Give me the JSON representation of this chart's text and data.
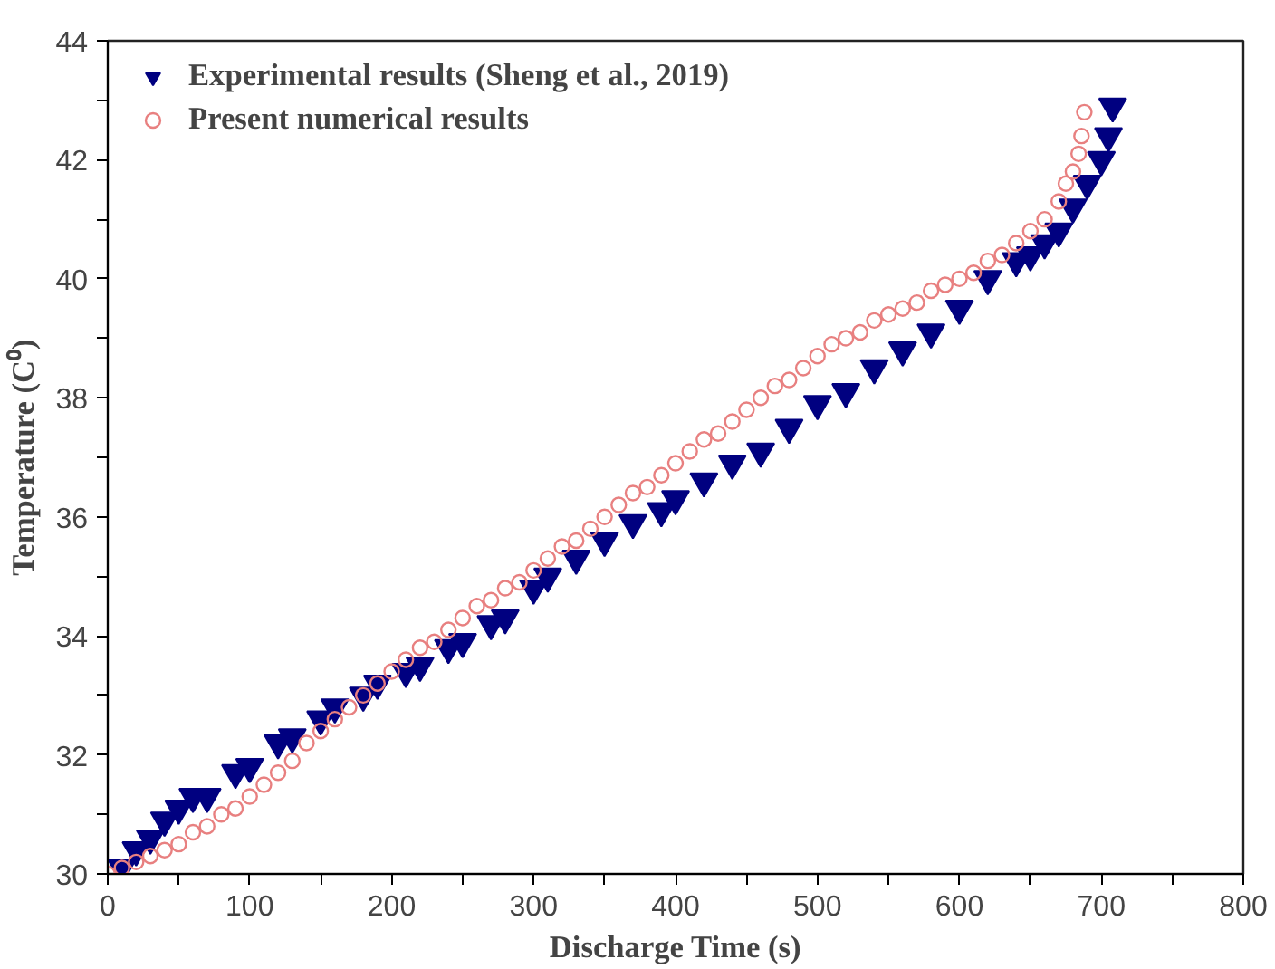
{
  "chart_data": {
    "type": "scatter",
    "xlabel": "Discharge Time (s)",
    "ylabel": "Temperature (C⁰)",
    "xlim": [
      0,
      800
    ],
    "ylim": [
      30,
      44
    ],
    "xticks": [
      0,
      {
        "value": 50,
        "label": null
      },
      100,
      {
        "value": 150,
        "label": null
      },
      200,
      {
        "value": 250,
        "label": null
      },
      300,
      {
        "value": 350,
        "label": null
      },
      400,
      {
        "value": 450,
        "label": null
      },
      500,
      {
        "value": 550,
        "label": null
      },
      600,
      {
        "value": 650,
        "label": null
      },
      700,
      {
        "value": 750,
        "label": null
      },
      800
    ],
    "yticks": [
      30,
      {
        "value": 31,
        "label": null
      },
      32,
      {
        "value": 33,
        "label": null
      },
      34,
      {
        "value": 35,
        "label": null
      },
      36,
      {
        "value": 37,
        "label": null
      },
      38,
      {
        "value": 39,
        "label": null
      },
      40,
      {
        "value": 41,
        "label": null
      },
      42,
      {
        "value": 43,
        "label": null
      },
      44
    ],
    "grid": false,
    "legend": "top left",
    "series": [
      {
        "name": "Experimental results (Sheng et al., 2019)",
        "color": "#000080",
        "marker": "triangle",
        "x": [
          10,
          20,
          30,
          40,
          50,
          60,
          70,
          90,
          100,
          120,
          130,
          150,
          160,
          180,
          190,
          210,
          220,
          240,
          250,
          270,
          280,
          300,
          310,
          330,
          350,
          370,
          390,
          400,
          420,
          440,
          460,
          480,
          500,
          520,
          540,
          560,
          580,
          600,
          620,
          640,
          650,
          660,
          670,
          680,
          690,
          700,
          705,
          708
        ],
        "values": [
          30.1,
          30.4,
          30.6,
          30.9,
          31.1,
          31.3,
          31.3,
          31.7,
          31.8,
          32.2,
          32.3,
          32.6,
          32.8,
          33.0,
          33.2,
          33.4,
          33.5,
          33.8,
          33.9,
          34.2,
          34.3,
          34.8,
          35.0,
          35.3,
          35.6,
          35.9,
          36.1,
          36.3,
          36.6,
          36.9,
          37.1,
          37.5,
          37.9,
          38.1,
          38.5,
          38.8,
          39.1,
          39.5,
          40.0,
          40.3,
          40.4,
          40.6,
          40.8,
          41.2,
          41.6,
          42.0,
          42.4,
          42.9
        ]
      },
      {
        "name": "Present numerical results",
        "color": "#e88080",
        "marker": "circle",
        "x": [
          0,
          10,
          20,
          30,
          40,
          50,
          60,
          70,
          80,
          90,
          100,
          110,
          120,
          130,
          140,
          150,
          160,
          170,
          180,
          190,
          200,
          210,
          220,
          230,
          240,
          250,
          260,
          270,
          280,
          290,
          300,
          310,
          320,
          330,
          340,
          350,
          360,
          370,
          380,
          390,
          400,
          410,
          420,
          430,
          440,
          450,
          460,
          470,
          480,
          490,
          500,
          510,
          520,
          530,
          540,
          550,
          560,
          570,
          580,
          590,
          600,
          610,
          620,
          630,
          640,
          650,
          660,
          670,
          675,
          680,
          684,
          686,
          688
        ],
        "values": [
          30.0,
          30.1,
          30.2,
          30.3,
          30.4,
          30.5,
          30.7,
          30.8,
          31.0,
          31.1,
          31.3,
          31.5,
          31.7,
          31.9,
          32.2,
          32.4,
          32.6,
          32.8,
          33.0,
          33.2,
          33.4,
          33.6,
          33.8,
          33.9,
          34.1,
          34.3,
          34.5,
          34.6,
          34.8,
          34.9,
          35.1,
          35.3,
          35.5,
          35.6,
          35.8,
          36.0,
          36.2,
          36.4,
          36.5,
          36.7,
          36.9,
          37.1,
          37.3,
          37.4,
          37.6,
          37.8,
          38.0,
          38.2,
          38.3,
          38.5,
          38.7,
          38.9,
          39.0,
          39.1,
          39.3,
          39.4,
          39.5,
          39.6,
          39.8,
          39.9,
          40.0,
          40.1,
          40.3,
          40.4,
          40.6,
          40.8,
          41.0,
          41.3,
          41.6,
          41.8,
          42.1,
          42.4,
          42.8
        ]
      }
    ]
  }
}
